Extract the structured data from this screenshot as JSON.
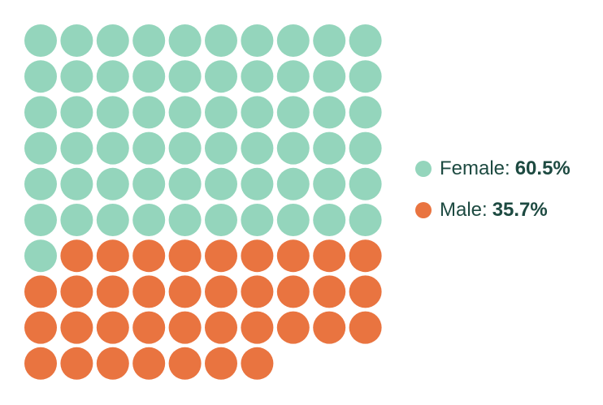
{
  "chart_data": {
    "type": "waffle",
    "total_units": 100,
    "grid": {
      "rows": 10,
      "columns": 10
    },
    "series": [
      {
        "name": "Female",
        "units": 61,
        "value_label": "60.5%",
        "color": "#94d5bc"
      },
      {
        "name": "Male",
        "units": 36,
        "value_label": "35.7%",
        "color": "#e97440"
      }
    ],
    "legend": {
      "position": "right",
      "items": [
        {
          "label": "Female:",
          "value": "60.5%",
          "color": "#94d5bc"
        },
        {
          "label": "Male:",
          "value": "35.7%",
          "color": "#e97440"
        }
      ]
    }
  }
}
